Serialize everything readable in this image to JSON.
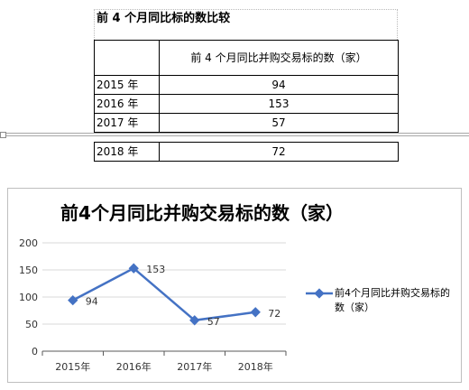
{
  "doc": {
    "heading": "前 4 个月同比标的数比较",
    "table": {
      "column_header": "前 4 个月同比并购交易标的数（家）",
      "rows": [
        {
          "year": "2015 年",
          "value": "94"
        },
        {
          "year": "2016 年",
          "value": "153"
        },
        {
          "year": "2017 年",
          "value": "57"
        }
      ],
      "rows_after_break": [
        {
          "year": "2018 年",
          "value": "72"
        }
      ]
    }
  },
  "colors": {
    "series": "#4472c4",
    "gridline": "#d9d9d9",
    "axis": "#595959"
  },
  "chart_data": {
    "type": "line",
    "title": "前4个月同比并购交易标的数（家）",
    "categories": [
      "2015年",
      "2016年",
      "2017年",
      "2018年"
    ],
    "series": [
      {
        "name": "前4个月同比并购交易标的数（家）",
        "values": [
          94,
          153,
          57,
          72
        ]
      }
    ],
    "y_ticks": [
      "0",
      "50",
      "100",
      "150",
      "200"
    ],
    "ylim": [
      0,
      200
    ],
    "grid": true,
    "legend": "right",
    "data_labels": [
      "94",
      "153",
      "57",
      "72"
    ]
  }
}
